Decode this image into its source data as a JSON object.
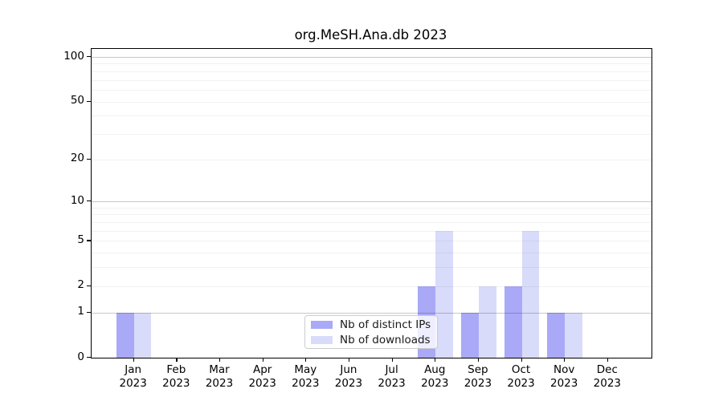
{
  "chart_data": {
    "type": "bar",
    "title": "org.MeSH.Ana.db 2023",
    "categories": [
      "Jan",
      "Feb",
      "Mar",
      "Apr",
      "May",
      "Jun",
      "Jul",
      "Aug",
      "Sep",
      "Oct",
      "Nov",
      "Dec"
    ],
    "year": "2023",
    "x_tick_labels": [
      [
        "Jan",
        "2023"
      ],
      [
        "Feb",
        "2023"
      ],
      [
        "Mar",
        "2023"
      ],
      [
        "Apr",
        "2023"
      ],
      [
        "May",
        "2023"
      ],
      [
        "Jun",
        "2023"
      ],
      [
        "Jul",
        "2023"
      ],
      [
        "Aug",
        "2023"
      ],
      [
        "Sep",
        "2023"
      ],
      [
        "Oct",
        "2023"
      ],
      [
        "Nov",
        "2023"
      ],
      [
        "Dec",
        "2023"
      ]
    ],
    "series": [
      {
        "name": "Nb of distinct IPs",
        "color": "#a9a9f7",
        "values": [
          1,
          0,
          0,
          0,
          0,
          0,
          0,
          2,
          1,
          2,
          1,
          0
        ]
      },
      {
        "name": "Nb of downloads",
        "color": "#d9dbfa",
        "values": [
          1,
          0,
          0,
          0,
          0,
          0,
          0,
          6,
          2,
          6,
          1,
          0
        ]
      }
    ],
    "yscale": "log1p",
    "ylim": [
      0,
      100
    ],
    "yticks": [
      0,
      1,
      2,
      5,
      10,
      20,
      50,
      100
    ],
    "gridlines_major": [
      1,
      10,
      100
    ],
    "gridlines_minor": [
      2,
      3,
      4,
      5,
      6,
      7,
      8,
      9,
      20,
      30,
      40,
      50,
      60,
      70,
      80,
      90
    ],
    "grid": true,
    "legend_position": "bottom-center"
  }
}
